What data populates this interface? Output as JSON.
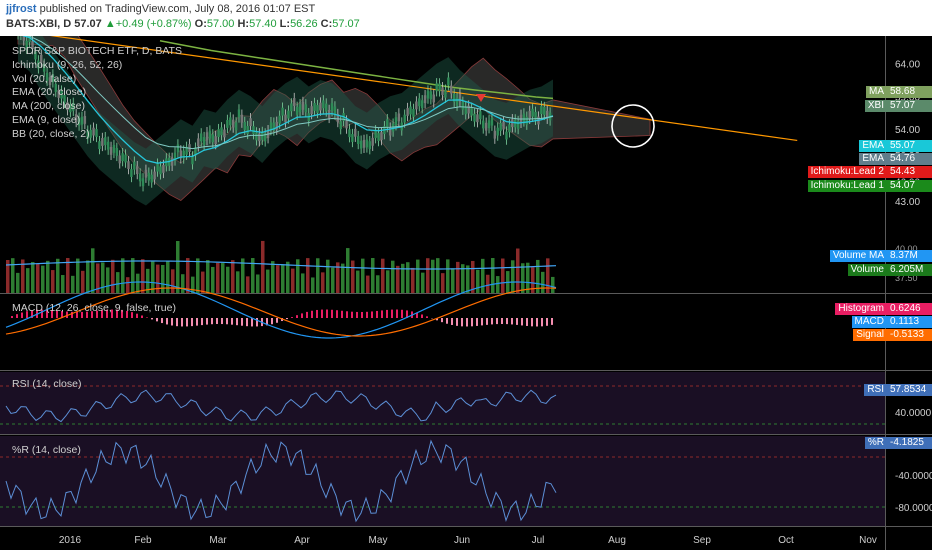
{
  "header": {
    "user": "jjfrost",
    "published": "published on TradingView.com, July 08, 2016 01:07 EST",
    "symbol": "BATS:XBI, D",
    "last": "57.07",
    "change": "+0.49 (+0.87%)",
    "o_label": "O:",
    "o": "57.00",
    "h_label": "H:",
    "h": "57.40",
    "l_label": "L:",
    "l": "56.26",
    "c_label": "C:",
    "c": "57.07"
  },
  "legend": {
    "title": "SPDR S&P BIOTECH ETF, D, BATS",
    "items": [
      "Ichimoku (9, 26, 52, 26)",
      "Vol (20, false)",
      "EMA (20, close)",
      "MA (200, close)",
      "EMA (9, close)",
      "BB (20, close, 2)"
    ]
  },
  "price_tags": [
    {
      "label": "MA",
      "value": "58.68",
      "color": "#7fa05e",
      "price": 58.68
    },
    {
      "label": "XBI",
      "value": "57.07",
      "color": "#5b8a6a",
      "price": 57.07
    },
    {
      "label": "EMA",
      "value": "55.07",
      "color": "#19c8d8",
      "price": 55.07
    },
    {
      "label": "EMA",
      "value": "54.76",
      "color": "#607d8b",
      "price": 54.76
    },
    {
      "label": "Ichimoku:Lead 2",
      "value": "54.43",
      "color": "#e01a1a",
      "price": 54.43
    },
    {
      "label": "Ichimoku:Lead 1",
      "value": "54.07",
      "color": "#1b8a1b",
      "price": 54.07
    }
  ],
  "volume_tags": [
    {
      "label": "Volume MA",
      "value": "8.37M",
      "color": "#2196f3"
    },
    {
      "label": "Volume",
      "value": "6.205M",
      "color": "#1b7a1b"
    }
  ],
  "macd": {
    "label": "MACD (12, 26, close, 9, false, true)",
    "tags": [
      {
        "label": "Histogram",
        "value": "0.6246",
        "color": "#e91e63"
      },
      {
        "label": "MACD",
        "value": "0.1113",
        "color": "#2196f3"
      },
      {
        "label": "Signal",
        "value": "-0.5133",
        "color": "#ff6d00"
      }
    ]
  },
  "rsi": {
    "label": "RSI (14, close)",
    "tag_label": "RSI",
    "tag_value": "57.8534",
    "tag_color": "#3f6fb8",
    "ticks": [
      "40.0000"
    ]
  },
  "willr": {
    "label": "%R (14, close)",
    "tag_label": "%R",
    "tag_value": "-4.1825",
    "tag_color": "#3f6fb8",
    "ticks": [
      "-40.0000",
      "-80.0000"
    ]
  },
  "chart_data": {
    "type": "line",
    "title": "SPDR S&P BIOTECH ETF, D, BATS",
    "x_ticks": [
      "2016",
      "Feb",
      "Mar",
      "Apr",
      "May",
      "Jun",
      "Jul",
      "Aug",
      "Sep",
      "Oct",
      "Nov"
    ],
    "y_ticks": [
      64.0,
      59.0,
      54.0,
      50.0,
      46.0,
      43.0
    ],
    "y_range": [
      41,
      67
    ],
    "close": [
      68.5,
      67.0,
      64.0,
      61.5,
      59.0,
      56.5,
      54.0,
      52.0,
      50.5,
      49.0,
      47.5,
      46.5,
      48.0,
      49.5,
      51.0,
      50.0,
      52.5,
      52.0,
      54.0,
      55.5,
      54.5,
      53.0,
      55.0,
      56.5,
      57.5,
      56.0,
      57.0,
      56.5,
      55.0,
      53.0,
      52.0,
      53.5,
      54.5,
      55.0,
      56.5,
      58.0,
      59.5,
      60.5,
      58.5,
      57.0,
      55.5,
      54.0,
      53.5,
      54.5,
      55.5,
      56.0,
      57.07
    ],
    "ma200": [
      67.5,
      67.0,
      66.5,
      66.0,
      65.6,
      65.2,
      64.8,
      64.4,
      64.0,
      63.6,
      63.2,
      62.8,
      62.4,
      62.0,
      61.6,
      61.2,
      60.8,
      60.4,
      60.1,
      59.8,
      59.5,
      59.2,
      58.9,
      58.68
    ],
    "trendline": {
      "start": [
        0,
        69.0
      ],
      "end": [
        46,
        57.5
      ],
      "extend_to": 67
    }
  }
}
